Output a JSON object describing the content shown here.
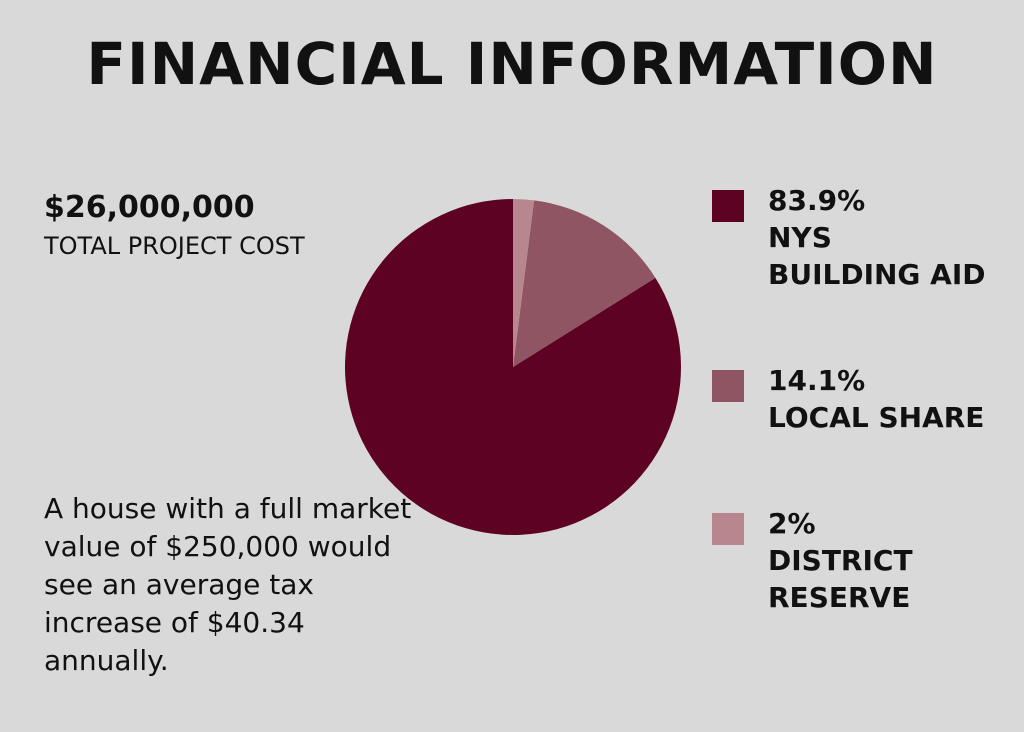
{
  "chart_data": {
    "type": "pie",
    "title": "FINANCIAL INFORMATION",
    "categories": [
      "NYS\nBUILDING AID",
      "LOCAL SHARE",
      "DISTRICT\nRESERVE"
    ],
    "values": [
      83.9,
      14.1,
      2
    ],
    "value_labels": [
      "83.9%",
      "14.1%",
      "2%"
    ],
    "colors": [
      "#5e0224",
      "#8f5563",
      "#b8868f"
    ]
  },
  "total_cost": {
    "amount": "$26,000,000",
    "label": "TOTAL PROJECT COST"
  },
  "note": "A house with a full market value of $250,000 would see an average tax increase of $40.34 annually."
}
